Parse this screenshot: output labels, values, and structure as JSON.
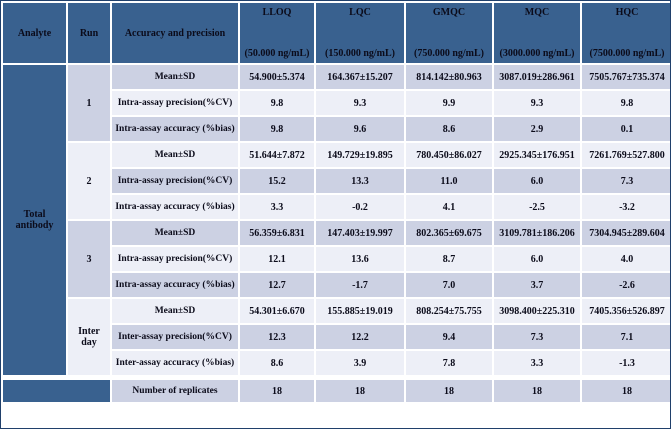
{
  "table": {
    "analyte": "Total antibody",
    "headers": {
      "analyte": "Analyte",
      "run": "Run",
      "metric": "Accuracy and precision",
      "levels": [
        {
          "name": "LLOQ",
          "conc": "(50.000 ng/mL)"
        },
        {
          "name": "LQC",
          "conc": "(150.000 ng/mL)"
        },
        {
          "name": "GMQC",
          "conc": "(750.000 ng/mL)"
        },
        {
          "name": "MQC",
          "conc": "(3000.000 ng/mL)"
        },
        {
          "name": "HQC",
          "conc": "(7500.000 ng/mL)"
        }
      ]
    },
    "blocks": [
      {
        "run": "1",
        "rows": [
          {
            "label": "Mean±SD",
            "values": [
              "54.900±5.374",
              "164.367±15.207",
              "814.142±80.963",
              "3087.019±286.961",
              "7505.767±735.374"
            ]
          },
          {
            "label": "Intra-assay precision(%CV)",
            "values": [
              "9.8",
              "9.3",
              "9.9",
              "9.3",
              "9.8"
            ]
          },
          {
            "label": "Intra-assay accuracy (%bias)",
            "values": [
              "9.8",
              "9.6",
              "8.6",
              "2.9",
              "0.1"
            ]
          }
        ]
      },
      {
        "run": "2",
        "rows": [
          {
            "label": "Mean±SD",
            "values": [
              "51.644±7.872",
              "149.729±19.895",
              "780.450±86.027",
              "2925.345±176.951",
              "7261.769±527.800"
            ]
          },
          {
            "label": "Intra-assay precision(%CV)",
            "values": [
              "15.2",
              "13.3",
              "11.0",
              "6.0",
              "7.3"
            ]
          },
          {
            "label": "Intra-assay accuracy (%bias)",
            "values": [
              "3.3",
              "-0.2",
              "4.1",
              "-2.5",
              "-3.2"
            ]
          }
        ]
      },
      {
        "run": "3",
        "rows": [
          {
            "label": "Mean±SD",
            "values": [
              "56.359±6.831",
              "147.403±19.997",
              "802.365±69.675",
              "3109.781±186.206",
              "7304.945±289.604"
            ]
          },
          {
            "label": "Intra-assay precision(%CV)",
            "values": [
              "12.1",
              "13.6",
              "8.7",
              "6.0",
              "4.0"
            ]
          },
          {
            "label": "Intra-assay accuracy (%bias)",
            "values": [
              "12.7",
              "-1.7",
              "7.0",
              "3.7",
              "-2.6"
            ]
          }
        ]
      },
      {
        "run": "Inter day",
        "rows": [
          {
            "label": "Mean±SD",
            "values": [
              "54.301±6.670",
              "155.885±19.019",
              "808.254±75.755",
              "3098.400±225.310",
              "7405.356±526.897"
            ]
          },
          {
            "label": "Inter-assay precision(%CV)",
            "values": [
              "12.3",
              "12.2",
              "9.4",
              "7.3",
              "7.1"
            ]
          },
          {
            "label": "Inter-assay accuracy (%bias)",
            "values": [
              "8.6",
              "3.9",
              "7.8",
              "3.3",
              "-1.3"
            ]
          }
        ]
      }
    ],
    "replicates": {
      "label": "Number of replicates",
      "values": [
        "18",
        "18",
        "18",
        "18",
        "18"
      ]
    }
  },
  "colors": {
    "header_blue": "#39618f",
    "stripe_lavender": "#ccd1e3",
    "stripe_light": "#edeff7",
    "cell_border": "#ffffff",
    "outer_border": "#20406b",
    "header_text": "#ffffff",
    "body_text": "#0b0b1a"
  }
}
